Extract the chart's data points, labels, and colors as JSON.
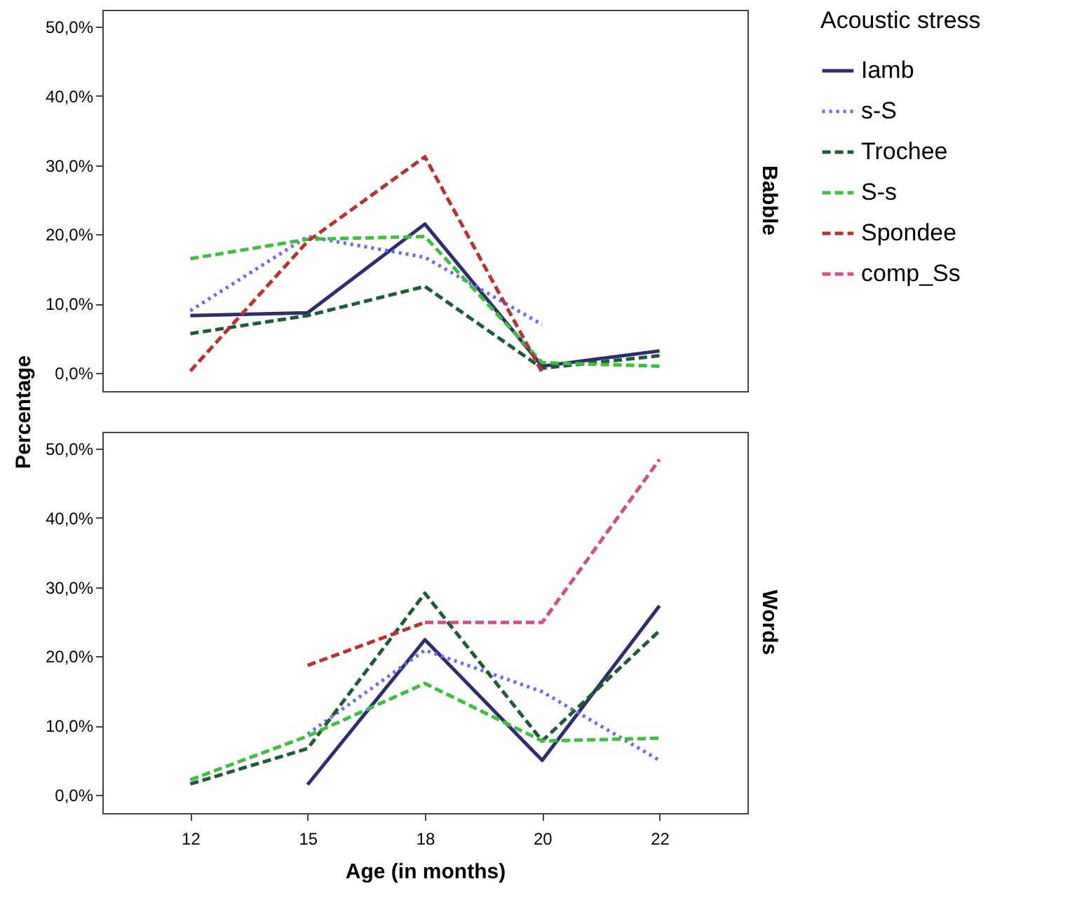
{
  "chart_data": [
    {
      "type": "line",
      "title": "Babble",
      "ylabel": "Percentage",
      "legend_title": "Acoustic stress",
      "legend": "top right",
      "tick_labels": "y",
      "grid": false,
      "categories": [
        "12",
        "15",
        "18",
        "20",
        "22"
      ],
      "ylim": [
        -2.6,
        52.4
      ],
      "yticks": [
        {
          "value": 0,
          "label": "0,0%"
        },
        {
          "value": 10,
          "label": "10,0%"
        },
        {
          "value": 20,
          "label": "20,0%"
        },
        {
          "value": 30,
          "label": "30,0%"
        },
        {
          "value": 40,
          "label": "40,0%"
        },
        {
          "value": 50,
          "label": "50,0%"
        }
      ],
      "series": [
        {
          "name": "Iamb",
          "color": "#2e2e6e",
          "line_style": "solid",
          "values": [
            8.3,
            8.7,
            21.5,
            1.0,
            3.2
          ]
        },
        {
          "name": "s-S",
          "color": "#6a6af5",
          "line_style": "dotted",
          "values": [
            9.0,
            19.7,
            16.7,
            7.0,
            null
          ]
        },
        {
          "name": "Trochee",
          "color": "#1f5c33",
          "line_style": "dashed",
          "values": [
            5.7,
            8.3,
            12.5,
            0.7,
            2.5
          ]
        },
        {
          "name": "S-s",
          "color": "#3fbf3f",
          "line_style": "dashed",
          "values": [
            16.5,
            19.3,
            19.7,
            1.5,
            1.0
          ]
        },
        {
          "name": "Spondee",
          "color": "#b93232",
          "line_style": "dashed",
          "values": [
            0.3,
            19.0,
            31.2,
            0.1,
            null
          ]
        },
        {
          "name": "comp_Ss",
          "color": "#d14f8a",
          "line_style": "dashed",
          "values": [
            null,
            null,
            null,
            null,
            null
          ]
        }
      ]
    },
    {
      "type": "line",
      "title": "Words",
      "xlabel": "Age (in months)",
      "grid": false,
      "categories": [
        "12",
        "15",
        "18",
        "20",
        "22"
      ],
      "ylim": [
        -2.6,
        52.4
      ],
      "yticks": [
        {
          "value": 0,
          "label": "0,0%"
        },
        {
          "value": 10,
          "label": "10,0%"
        },
        {
          "value": 20,
          "label": "20,0%"
        },
        {
          "value": 30,
          "label": "30,0%"
        },
        {
          "value": 40,
          "label": "40,0%"
        },
        {
          "value": 50,
          "label": "50,0%"
        }
      ],
      "series": [
        {
          "color": "#2e2e6e",
          "line_style": "solid",
          "values": [
            null,
            1.5,
            22.4,
            5.0,
            27.3
          ]
        },
        {
          "color": "#6a6af5",
          "line_style": "dotted",
          "values": [
            null,
            8.8,
            20.9,
            14.9,
            5.0
          ]
        },
        {
          "color": "#1f5c33",
          "line_style": "dashed",
          "values": [
            1.6,
            6.7,
            29.1,
            7.8,
            23.7
          ]
        },
        {
          "color": "#3fbf3f",
          "line_style": "dashed",
          "values": [
            2.2,
            8.5,
            16.1,
            7.8,
            8.2
          ]
        },
        {
          "color": "#b93232",
          "line_style": "dashed",
          "values": [
            null,
            18.7,
            24.9,
            null,
            null
          ]
        },
        {
          "color": "#d14f8a",
          "line_style": "dashed",
          "values": [
            null,
            null,
            24.9,
            24.9,
            48.4
          ]
        }
      ]
    }
  ]
}
